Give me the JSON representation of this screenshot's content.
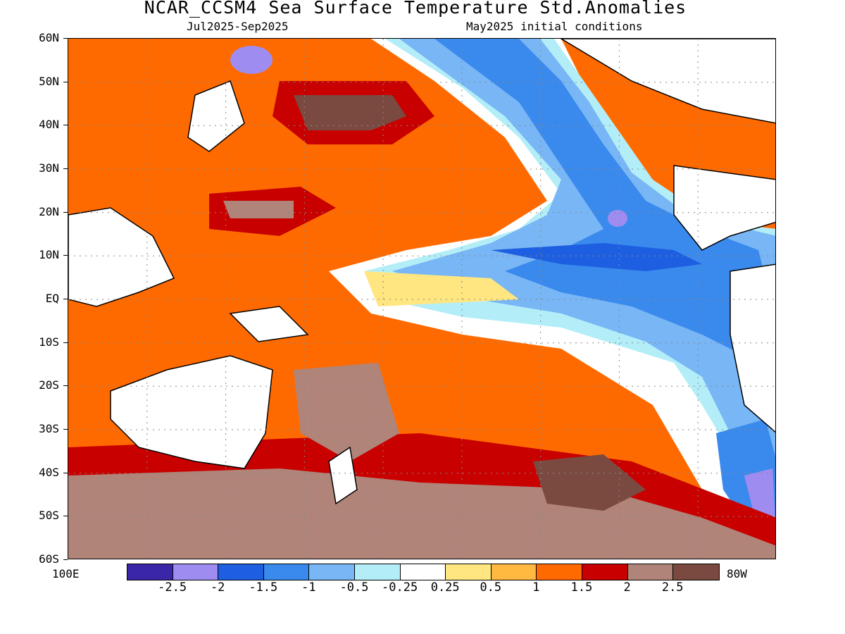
{
  "title": "NCAR_CCSM4 Sea Surface Temperature Std.Anomalies",
  "subtitle_left": "Jul2025-Sep2025",
  "subtitle_right": "May2025 initial conditions",
  "latitude_labels": [
    "60N",
    "50N",
    "40N",
    "30N",
    "20N",
    "10N",
    "EQ",
    "10S",
    "20S",
    "30S",
    "40S",
    "50S",
    "60S"
  ],
  "longitude_left": "100E",
  "longitude_right": "80W",
  "colorbar": {
    "colors": [
      "#3a26a8",
      "#9f8cf0",
      "#1d5fe0",
      "#3a8aee",
      "#78b6f5",
      "#b3eef8",
      "#ffffff",
      "#ffe680",
      "#ffb840",
      "#ff6a00",
      "#c80000",
      "#b08478",
      "#7a4a40"
    ],
    "labels": [
      "-2.5",
      "-2",
      "-1.5",
      "-1",
      "-0.5",
      "-0.25",
      "0.25",
      "0.5",
      "1",
      "1.5",
      "2",
      "2.5"
    ]
  },
  "chart_data": {
    "type": "heatmap",
    "title": "NCAR_CCSM4 Sea Surface Temperature Std.Anomalies",
    "subtitle": [
      "Jul2025-Sep2025",
      "May2025 initial conditions"
    ],
    "lat_range": [
      "60S",
      "60N"
    ],
    "lon_range": [
      "100E",
      "80W"
    ],
    "contour_levels": [
      -2.5,
      -2,
      -1.5,
      -1,
      -0.5,
      -0.25,
      0.25,
      0.5,
      1,
      1.5,
      2,
      2.5
    ],
    "grid": true
  }
}
